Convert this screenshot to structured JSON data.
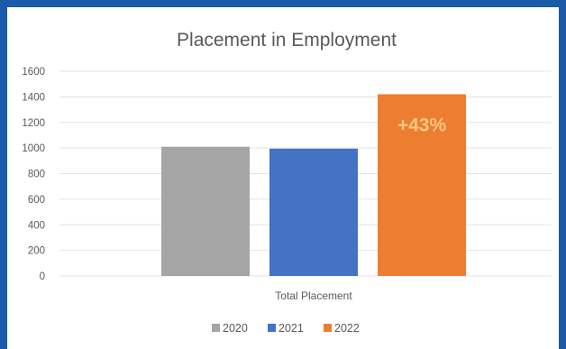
{
  "chart_data": {
    "type": "bar",
    "title": "Placement in Employment",
    "categories": [
      "Total Placement"
    ],
    "series": [
      {
        "name": "2020",
        "values": [
          1010
        ],
        "color": "#a5a5a5"
      },
      {
        "name": "2021",
        "values": [
          995
        ],
        "color": "#4472c4"
      },
      {
        "name": "2022",
        "values": [
          1420
        ],
        "color": "#ed7d31"
      }
    ],
    "yticks": [
      "0",
      "200",
      "400",
      "600",
      "800",
      "1000",
      "1200",
      "1400",
      "1600"
    ],
    "ylim": [
      0,
      1600
    ],
    "grid": true,
    "legend": "bottom",
    "annotation": {
      "text": "+43%",
      "series": "2022"
    }
  },
  "colors": {
    "frame": "#1a5aa8",
    "annotation": "#fbc882"
  }
}
